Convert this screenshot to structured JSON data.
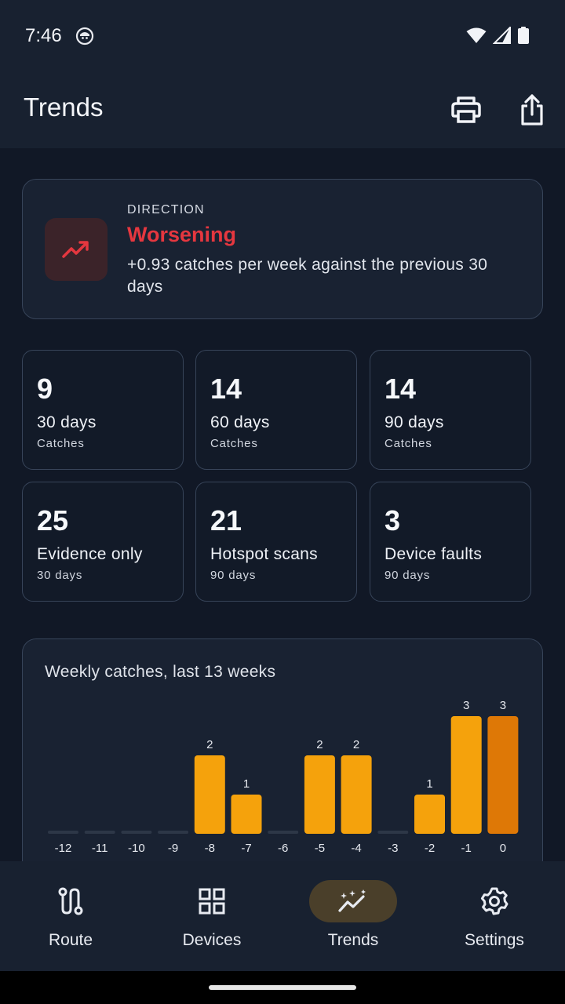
{
  "status": {
    "time": "7:46"
  },
  "appbar": {
    "title": "Trends"
  },
  "direction": {
    "label": "DIRECTION",
    "value": "Worsening",
    "description": "+0.93 catches per week against the previous 30 days"
  },
  "stats": [
    {
      "value": "9",
      "title": "30 days",
      "sub": "Catches"
    },
    {
      "value": "14",
      "title": "60 days",
      "sub": "Catches"
    },
    {
      "value": "14",
      "title": "90 days",
      "sub": "Catches"
    },
    {
      "value": "25",
      "title": "Evidence only",
      "sub": "30 days"
    },
    {
      "value": "21",
      "title": "Hotspot scans",
      "sub": "90 days"
    },
    {
      "value": "3",
      "title": "Device faults",
      "sub": "90 days"
    }
  ],
  "chart_data": {
    "type": "bar",
    "title": "Weekly catches, last 13 weeks",
    "categories": [
      "-12",
      "-11",
      "-10",
      "-9",
      "-8",
      "-7",
      "-6",
      "-5",
      "-4",
      "-3",
      "-2",
      "-1",
      "0"
    ],
    "values": [
      0,
      0,
      0,
      0,
      2,
      1,
      0,
      2,
      2,
      0,
      1,
      3,
      3
    ],
    "colors": {
      "bar": "#f5a20c",
      "current": "#de7806",
      "empty": "#2d3747",
      "label": "#e6e9ef"
    }
  },
  "nav": {
    "items": [
      {
        "label": "Route",
        "icon": "route-icon"
      },
      {
        "label": "Devices",
        "icon": "grid-icon"
      },
      {
        "label": "Trends",
        "icon": "trends-icon"
      },
      {
        "label": "Settings",
        "icon": "gear-icon"
      }
    ],
    "active": "Trends"
  },
  "colors": {
    "background": "#111826",
    "surface": "#192232",
    "accent": "#f5a20c",
    "danger": "#e5373f"
  }
}
